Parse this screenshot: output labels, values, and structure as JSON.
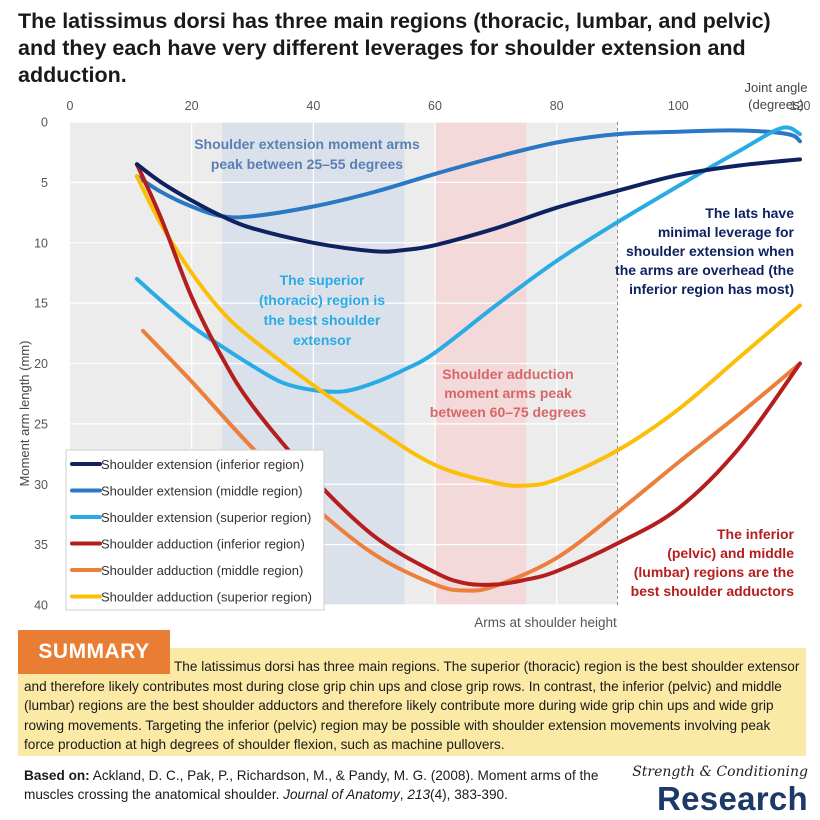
{
  "title": "The latissimus dorsi has three main regions (thoracic, lumbar, and pelvic) and they each have very different leverages for shoulder extension and adduction.",
  "chart_data": {
    "type": "line",
    "x_axis": {
      "label_line1": "Joint angle",
      "label_line2": "(degrees)",
      "range": [
        0,
        120
      ],
      "ticks": [
        0,
        20,
        40,
        60,
        80,
        100,
        120
      ],
      "position": "top"
    },
    "y_axis": {
      "label": "Moment arm length (mm)",
      "range": [
        0,
        40
      ],
      "inverted": true,
      "ticks": [
        0,
        5,
        10,
        15,
        20,
        25,
        30,
        35,
        40
      ]
    },
    "overhead_marker": {
      "x": 90,
      "label": "Arms at shoulder height"
    },
    "bands": [
      {
        "x_range": [
          25,
          55
        ],
        "color": "#dbe1ea",
        "label_lines": [
          "Shoulder extension moment arms",
          "peak between 25–55 degrees"
        ],
        "label_color": "#5a7fb5"
      },
      {
        "x_range": [
          60,
          75
        ],
        "color": "#f3d9d9",
        "label_lines": [
          "Shoulder adduction",
          "moment arms peak",
          "between 60–75 degrees"
        ],
        "label_color": "#d66767"
      }
    ],
    "series": [
      {
        "name": "Shoulder extension (inferior region)",
        "color": "#0e2160",
        "x": [
          11,
          15,
          20,
          25,
          30,
          40,
          50,
          55,
          60,
          70,
          80,
          90,
          100,
          110,
          120
        ],
        "y": [
          3.5,
          5.0,
          6.5,
          7.8,
          8.8,
          10.0,
          10.7,
          10.6,
          10.2,
          8.8,
          7.1,
          5.7,
          4.4,
          3.6,
          3.1
        ]
      },
      {
        "name": "Shoulder extension (middle region)",
        "color": "#2a78c4",
        "x": [
          11,
          15,
          20,
          25,
          30,
          40,
          50,
          60,
          70,
          80,
          90,
          100,
          110,
          118,
          120
        ],
        "y": [
          4.5,
          5.8,
          7.0,
          7.8,
          7.8,
          7.0,
          5.8,
          4.3,
          2.9,
          1.7,
          1.0,
          0.8,
          0.7,
          1.0,
          1.6
        ]
      },
      {
        "name": "Shoulder extension (superior region)",
        "color": "#29abe6",
        "x": [
          11,
          15,
          20,
          25,
          30,
          35,
          40,
          45,
          50,
          55,
          60,
          70,
          80,
          90,
          100,
          110,
          117,
          120
        ],
        "y": [
          13.0,
          14.8,
          16.9,
          18.6,
          20.2,
          21.6,
          22.2,
          22.3,
          21.6,
          20.5,
          19.1,
          15.2,
          11.5,
          8.3,
          5.3,
          2.4,
          0.5,
          1.0
        ]
      },
      {
        "name": "Shoulder adduction (inferior region)",
        "color": "#b41e1e",
        "x": [
          11,
          15,
          20,
          25,
          30,
          40,
          50,
          60,
          65,
          70,
          75,
          80,
          90,
          100,
          110,
          120
        ],
        "y": [
          3.5,
          8.0,
          14.5,
          19.5,
          23.5,
          29.5,
          34.3,
          37.3,
          38.2,
          38.3,
          37.9,
          37.2,
          34.9,
          32.0,
          27.0,
          20.0
        ]
      },
      {
        "name": "Shoulder adduction (middle region)",
        "color": "#ec7f3b",
        "x": [
          12,
          20,
          30,
          40,
          50,
          60,
          65,
          70,
          80,
          90,
          100,
          110,
          120
        ],
        "y": [
          17.3,
          21.5,
          27.0,
          31.8,
          35.8,
          38.3,
          38.8,
          38.4,
          36.1,
          32.3,
          28.2,
          24.2,
          20.0
        ]
      },
      {
        "name": "Shoulder adduction (superior region)",
        "color": "#fbbf0a",
        "x": [
          11,
          15,
          20,
          25,
          30,
          40,
          50,
          60,
          70,
          75,
          80,
          90,
          100,
          110,
          120
        ],
        "y": [
          4.5,
          8.5,
          12.5,
          15.7,
          18.0,
          21.8,
          25.3,
          28.4,
          29.9,
          30.1,
          29.6,
          27.2,
          23.8,
          19.5,
          15.2
        ]
      }
    ],
    "annotations": [
      {
        "lines": [
          "The superior",
          "(thoracic) region is",
          "the best shoulder",
          "extensor"
        ],
        "color": "#29abe6",
        "anchor": "middle"
      },
      {
        "lines": [
          "The lats have",
          "minimal leverage for",
          "shoulder extension when",
          "the arms are overhead (the",
          "inferior region has most)"
        ],
        "color": "#0e2160",
        "anchor": "end"
      },
      {
        "lines": [
          "The inferior",
          "(pelvic) and middle",
          "(lumbar) regions are the",
          "best shoulder adductors"
        ],
        "color": "#b41e1e",
        "anchor": "end"
      }
    ],
    "legend_position": "bottom-left"
  },
  "summary": {
    "heading": "SUMMARY",
    "text": "The latissimus dorsi has three main regions. The superior (thoracic) region is the best shoulder extensor and therefore likely contributes most during close grip chin ups and close grip rows. In contrast, the inferior (pelvic) and middle (lumbar) regions are the best shoulder adductors and therefore likely contribute more during wide grip chin ups and wide grip rowing movements. Targeting the inferior (pelvic) region may be possible with shoulder extension movements involving peak force production at high degrees of shoulder flexion, such as machine pullovers."
  },
  "citation": {
    "label": "Based on:",
    "authors": "Ackland, D. C., Pak, P., Richardson, M., & Pandy, M. G. (2008). Moment arms of the muscles crossing the anatomical shoulder.",
    "journal": "Journal of Anatomy",
    "volume": "213",
    "issue_pages": "(4), 383-390."
  },
  "brand": {
    "top": "Strength & Conditioning",
    "bottom": "Research"
  }
}
